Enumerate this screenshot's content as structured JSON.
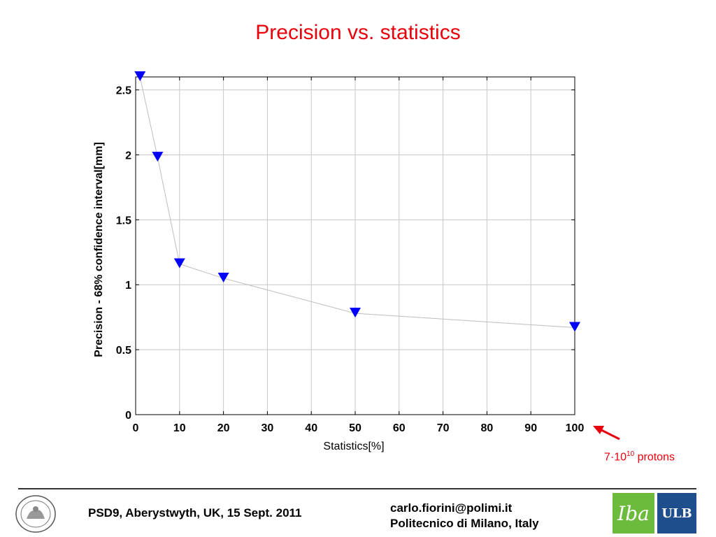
{
  "slide": {
    "title": "Precision vs. statistics"
  },
  "chart_data": {
    "type": "scatter",
    "xlabel": "Statistics[%]",
    "ylabel": "Precision - 68% confidence interval[mm]",
    "xlim": [
      0,
      100
    ],
    "ylim": [
      0,
      2.6
    ],
    "xticks": [
      "0",
      "10",
      "20",
      "30",
      "40",
      "50",
      "60",
      "70",
      "80",
      "90",
      "100"
    ],
    "yticks": [
      "0",
      "0.5",
      "1",
      "1.5",
      "2",
      "2.5"
    ],
    "grid": true,
    "marker": "down-triangle",
    "marker_color": "#0000ff",
    "line_color": "#bdbdbd",
    "series": [
      {
        "x": [
          1,
          5,
          10,
          20,
          50,
          100
        ],
        "y": [
          2.6,
          1.98,
          1.16,
          1.05,
          0.78,
          0.67
        ]
      }
    ]
  },
  "annotation": {
    "base": "7·10",
    "exponent": "10",
    "suffix": " protons",
    "color": "#e8000b"
  },
  "footer": {
    "left": "PSD9, Aberystwyth, UK, 15 Sept. 2011",
    "email": "carlo.fiorini@polimi.it",
    "affiliation": "Politecnico di Milano, Italy",
    "logo_iba": "Iba",
    "logo_ulb": "ULB"
  }
}
